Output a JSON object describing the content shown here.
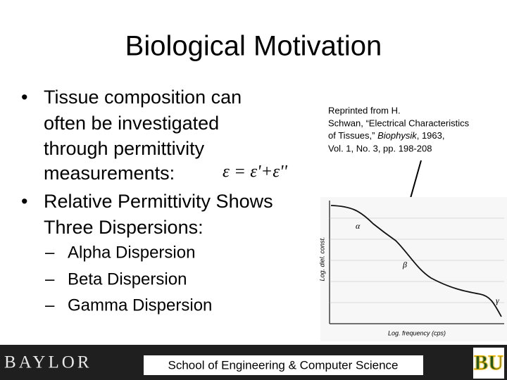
{
  "slide": {
    "title": "Biological Motivation",
    "bullets": [
      {
        "lines": [
          "Tissue composition can",
          "often be investigated",
          "through permittivity",
          "measurements:"
        ]
      },
      {
        "lines": [
          "Relative Permittivity Shows",
          "Three Dispersions:"
        ]
      }
    ],
    "equation": "ε = ε'+ε''",
    "sub_bullets": [
      "Alpha Dispersion",
      "Beta Dispersion",
      "Gamma Dispersion"
    ],
    "citation": {
      "line1": "Reprinted from H.",
      "line2": "Schwan, “Electrical Characteristics",
      "line3_start": "of Tissues,” ",
      "journal": "Biophysik",
      "line3_end": ", 1963,",
      "line4": "Vol. 1, No. 3, pp. 198-208"
    },
    "figure": {
      "y_label": "Log. diel. const.",
      "x_label": "Log. frequency (cps)",
      "regions": [
        "α",
        "β",
        "γ"
      ]
    },
    "footer": {
      "brand": "BAYLOR",
      "school": "School of Engineering & Computer Science",
      "logo": "BU"
    }
  }
}
